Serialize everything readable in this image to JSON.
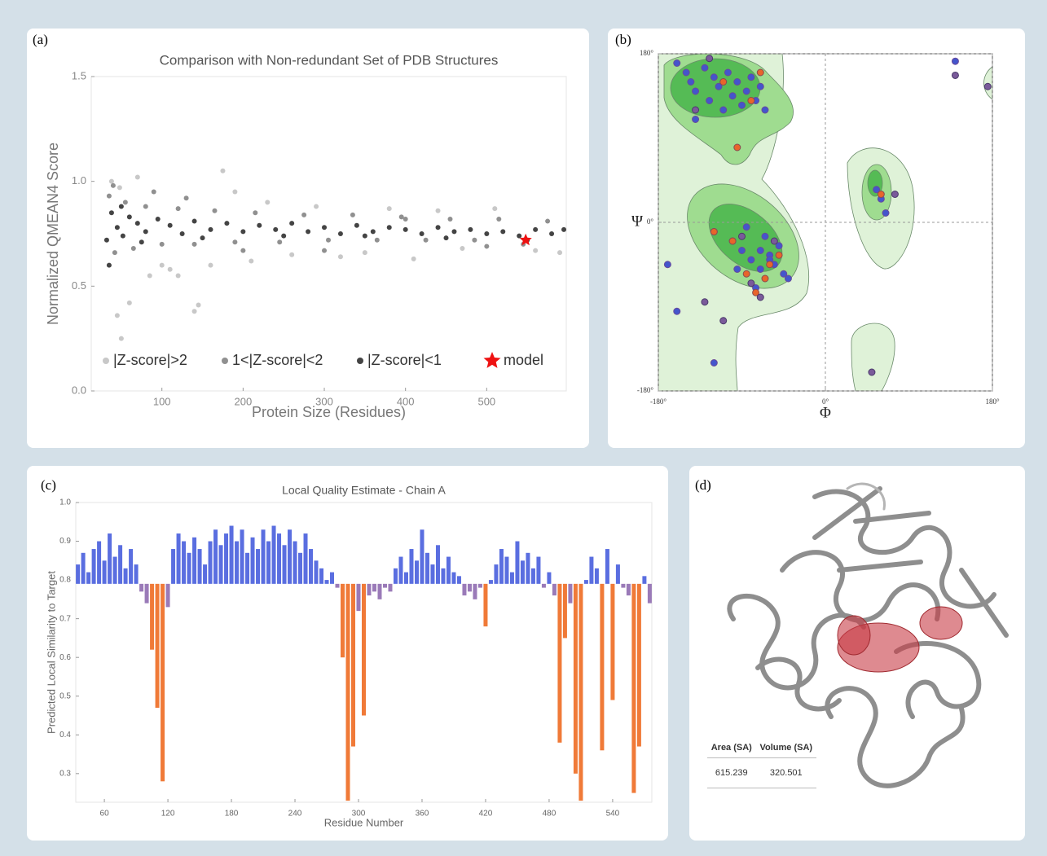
{
  "panel_labels": [
    "(a)",
    "(b)",
    "(c)",
    "(d)"
  ],
  "chart_data": [
    {
      "type": "scatter",
      "title": "Comparison with Non-redundant Set of PDB Structures",
      "x_label": "Protein Size (Residues)",
      "y_label": "Normalized QMEAN4 Score",
      "xlim": [
        13,
        598
      ],
      "ylim": [
        0,
        1.5
      ],
      "xticks": [
        100,
        200,
        300,
        400,
        500
      ],
      "yticks": [
        {
          "value": 0,
          "label": "0.0"
        },
        0.5,
        {
          "value": 1,
          "label": "1.0"
        },
        1.5
      ],
      "legend": "lower center",
      "series": [
        {
          "name": "|Z-score|>2",
          "color": "#c8c8c8",
          "marker": "circle",
          "x": [
            38,
            45,
            50,
            60,
            70,
            85,
            100,
            120,
            140,
            145,
            160,
            175,
            190,
            210,
            230,
            260,
            290,
            320,
            350,
            380,
            410,
            440,
            470,
            510,
            560,
            590,
            48,
            110
          ],
          "y": [
            1.0,
            0.36,
            0.25,
            0.42,
            1.02,
            0.55,
            0.6,
            0.55,
            0.38,
            0.41,
            0.6,
            1.05,
            0.95,
            0.62,
            0.9,
            0.65,
            0.88,
            0.64,
            0.66,
            0.87,
            0.63,
            0.86,
            0.68,
            0.87,
            0.67,
            0.66,
            0.97,
            0.58
          ]
        },
        {
          "name": "1<|Z-score|<2",
          "color": "#909090",
          "marker": "circle",
          "x": [
            35,
            42,
            55,
            65,
            80,
            100,
            120,
            140,
            165,
            190,
            215,
            245,
            275,
            305,
            335,
            365,
            395,
            425,
            455,
            485,
            515,
            545,
            575,
            40,
            90,
            130,
            200,
            300,
            400,
            500
          ],
          "y": [
            0.93,
            0.66,
            0.9,
            0.68,
            0.88,
            0.7,
            0.87,
            0.7,
            0.86,
            0.71,
            0.85,
            0.71,
            0.84,
            0.72,
            0.84,
            0.72,
            0.83,
            0.72,
            0.82,
            0.72,
            0.82,
            0.7,
            0.81,
            0.98,
            0.95,
            0.92,
            0.67,
            0.67,
            0.82,
            0.69
          ]
        },
        {
          "name": "|Z-score|<1",
          "color": "#444444",
          "marker": "circle",
          "x": [
            32,
            38,
            45,
            52,
            60,
            70,
            80,
            95,
            110,
            125,
            140,
            160,
            180,
            200,
            220,
            240,
            260,
            280,
            300,
            320,
            340,
            360,
            380,
            400,
            420,
            440,
            460,
            480,
            500,
            520,
            540,
            560,
            580,
            595,
            35,
            50,
            75,
            150,
            250,
            350,
            450,
            550
          ],
          "y": [
            0.72,
            0.85,
            0.78,
            0.74,
            0.83,
            0.8,
            0.76,
            0.82,
            0.79,
            0.75,
            0.81,
            0.77,
            0.8,
            0.76,
            0.79,
            0.77,
            0.8,
            0.76,
            0.78,
            0.75,
            0.79,
            0.76,
            0.78,
            0.77,
            0.75,
            0.78,
            0.76,
            0.77,
            0.75,
            0.76,
            0.74,
            0.77,
            0.75,
            0.77,
            0.6,
            0.88,
            0.71,
            0.73,
            0.74,
            0.74,
            0.73,
            0.72
          ]
        },
        {
          "name": "model",
          "color": "#ee1111",
          "marker": "star",
          "x": [
            548
          ],
          "y": [
            0.72
          ]
        }
      ]
    },
    {
      "type": "scatter",
      "x_label": "Φ",
      "y_label": "Ψ",
      "xlim": [
        -180,
        180
      ],
      "ylim": [
        -180,
        180
      ],
      "xticks": [
        {
          "value": -180,
          "label": "-180°"
        },
        {
          "value": 0,
          "label": "0°"
        },
        {
          "value": 180,
          "label": "180°"
        }
      ],
      "yticks": [
        {
          "value": -180,
          "label": "-180°"
        },
        {
          "value": 0,
          "label": "0°"
        },
        {
          "value": 180,
          "label": "180°"
        }
      ],
      "grid": "dashed",
      "series": [
        {
          "color": "#4455cc",
          "edgecolor": "#6a4a9a",
          "marker": "circle",
          "x": [
            -160,
            -150,
            -145,
            -140,
            -130,
            -125,
            -120,
            -115,
            -110,
            -105,
            -100,
            -95,
            -90,
            -85,
            -80,
            -75,
            -70,
            -65,
            -140,
            -120,
            -100,
            -90,
            -80,
            -70,
            -60,
            -55,
            -50,
            -45,
            -40,
            -65,
            -75,
            -85,
            -95,
            -60,
            -70,
            55,
            60,
            65,
            -160,
            -120,
            140,
            -170
          ],
          "y": [
            170,
            160,
            150,
            140,
            165,
            130,
            155,
            145,
            120,
            160,
            135,
            150,
            125,
            140,
            155,
            130,
            145,
            120,
            110,
            -10,
            -20,
            -30,
            -40,
            -50,
            -35,
            -45,
            -25,
            -55,
            -60,
            -15,
            -70,
            -5,
            -50,
            -40,
            -30,
            35,
            25,
            10,
            -95,
            -150,
            172,
            -45
          ]
        },
        {
          "color": "#e8652a",
          "edgecolor": "#8a4a50",
          "marker": "circle",
          "x": [
            -110,
            -95,
            -80,
            -70,
            -100,
            -60,
            -50,
            -85,
            -65,
            60,
            -120,
            -75
          ],
          "y": [
            150,
            80,
            130,
            160,
            -20,
            -45,
            -35,
            -55,
            -60,
            30,
            -10,
            -75
          ]
        },
        {
          "color": "#7a5a9a",
          "edgecolor": "#4a3a6a",
          "marker": "circle",
          "x": [
            -140,
            -125,
            -90,
            -80,
            -70,
            -55,
            -130,
            -110,
            50,
            75,
            175,
            140
          ],
          "y": [
            120,
            175,
            -15,
            -65,
            -80,
            -20,
            -85,
            -105,
            -160,
            30,
            145,
            157
          ]
        }
      ]
    },
    {
      "type": "bar",
      "title": "Local Quality Estimate - Chain A",
      "x_label": "Residue Number",
      "y_label": "Predicted Local Similarity to Target",
      "xlim": [
        33,
        577
      ],
      "ylim": [
        0.226,
        1.0
      ],
      "xticks": [
        60,
        120,
        180,
        240,
        300,
        360,
        420,
        480,
        540
      ],
      "yticks": [
        0.3,
        0.4,
        0.5,
        0.6,
        0.7,
        0.8,
        0.9,
        {
          "value": 1,
          "label": "1.0"
        }
      ],
      "bar_base": 0.79,
      "colors": [
        "#f07a38",
        "#9a7ab8",
        "#5a6ee0"
      ],
      "color_breaks": [
        0.7,
        0.79
      ],
      "x": [
        35,
        40,
        45,
        50,
        55,
        60,
        65,
        70,
        75,
        80,
        85,
        90,
        95,
        100,
        105,
        110,
        115,
        120,
        125,
        130,
        135,
        140,
        145,
        150,
        155,
        160,
        165,
        170,
        175,
        180,
        185,
        190,
        195,
        200,
        205,
        210,
        215,
        220,
        225,
        230,
        235,
        240,
        245,
        250,
        255,
        260,
        265,
        270,
        275,
        280,
        285,
        290,
        295,
        300,
        305,
        310,
        315,
        320,
        325,
        330,
        335,
        340,
        345,
        350,
        355,
        360,
        365,
        370,
        375,
        380,
        385,
        390,
        395,
        400,
        405,
        410,
        415,
        420,
        425,
        430,
        435,
        440,
        445,
        450,
        455,
        460,
        465,
        470,
        475,
        480,
        485,
        490,
        495,
        500,
        505,
        510,
        515,
        520,
        525,
        530,
        535,
        540,
        545,
        550,
        555,
        560,
        565,
        570,
        575
      ],
      "values": [
        0.84,
        0.87,
        0.82,
        0.88,
        0.9,
        0.85,
        0.92,
        0.86,
        0.89,
        0.83,
        0.88,
        0.84,
        0.77,
        0.74,
        0.62,
        0.47,
        0.28,
        0.73,
        0.88,
        0.92,
        0.9,
        0.87,
        0.91,
        0.88,
        0.84,
        0.9,
        0.93,
        0.89,
        0.92,
        0.94,
        0.9,
        0.93,
        0.87,
        0.91,
        0.88,
        0.93,
        0.9,
        0.94,
        0.92,
        0.89,
        0.93,
        0.9,
        0.87,
        0.92,
        0.88,
        0.85,
        0.83,
        0.8,
        0.82,
        0.78,
        0.6,
        0.23,
        0.37,
        0.72,
        0.45,
        0.76,
        0.77,
        0.75,
        0.78,
        0.77,
        0.83,
        0.86,
        0.82,
        0.88,
        0.85,
        0.93,
        0.87,
        0.84,
        0.89,
        0.83,
        0.86,
        0.82,
        0.81,
        0.76,
        0.77,
        0.75,
        0.78,
        0.68,
        0.8,
        0.84,
        0.88,
        0.86,
        0.82,
        0.9,
        0.85,
        0.87,
        0.83,
        0.86,
        0.78,
        0.82,
        0.76,
        0.38,
        0.65,
        0.74,
        0.3,
        0.23,
        0.8,
        0.86,
        0.83,
        0.36,
        0.88,
        0.49,
        0.84,
        0.78,
        0.76,
        0.25,
        0.37,
        0.81,
        0.74
      ]
    }
  ],
  "structure_table": {
    "header": [
      "Area (SA)",
      "Volume (SA)"
    ],
    "rows": [
      [
        615.239,
        320.501
      ]
    ]
  }
}
